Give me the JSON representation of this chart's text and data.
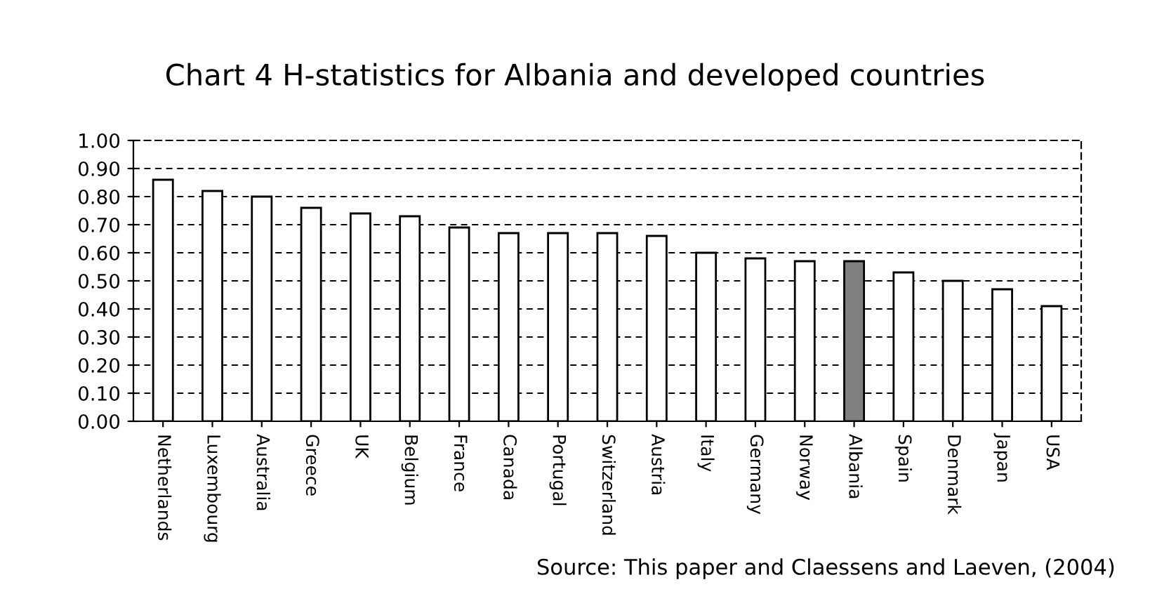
{
  "chart_data": {
    "type": "bar",
    "title": "Chart 4 H-statistics for Albania and developed countries",
    "categories": [
      "Netherlands",
      "Luxembourg",
      "Australia",
      "Greece",
      "UK",
      "Belgium",
      "France",
      "Canada",
      "Portugal",
      "Switzerland",
      "Austria",
      "Italy",
      "Germany",
      "Norway",
      "Albania",
      "Spain",
      "Denmark",
      "Japan",
      "USA"
    ],
    "values": [
      0.86,
      0.82,
      0.8,
      0.76,
      0.74,
      0.73,
      0.69,
      0.67,
      0.67,
      0.67,
      0.66,
      0.6,
      0.58,
      0.57,
      0.57,
      0.53,
      0.5,
      0.47,
      0.41
    ],
    "colors": [
      "#ffffff",
      "#ffffff",
      "#ffffff",
      "#ffffff",
      "#ffffff",
      "#ffffff",
      "#ffffff",
      "#ffffff",
      "#ffffff",
      "#ffffff",
      "#ffffff",
      "#ffffff",
      "#ffffff",
      "#ffffff",
      "#808080",
      "#ffffff",
      "#ffffff",
      "#ffffff",
      "#ffffff"
    ],
    "ylim": [
      0,
      1.0
    ],
    "yticks": [
      {
        "value": 0,
        "label": "0.00"
      },
      {
        "value": 0.1,
        "label": "0.10"
      },
      {
        "value": 0.2,
        "label": "0.20"
      },
      {
        "value": 0.3,
        "label": "0.30"
      },
      {
        "value": 0.4,
        "label": "0.40"
      },
      {
        "value": 0.5,
        "label": "0.50"
      },
      {
        "value": 0.6,
        "label": "0.60"
      },
      {
        "value": 0.7,
        "label": "0.70"
      },
      {
        "value": 0.8,
        "label": "0.80"
      },
      {
        "value": 0.9,
        "label": "0.90"
      },
      {
        "value": 1.0,
        "label": "1.00"
      }
    ],
    "grid": "y",
    "annotations": [
      "Source: This paper and Claessens and Laeven, (2004)"
    ]
  }
}
